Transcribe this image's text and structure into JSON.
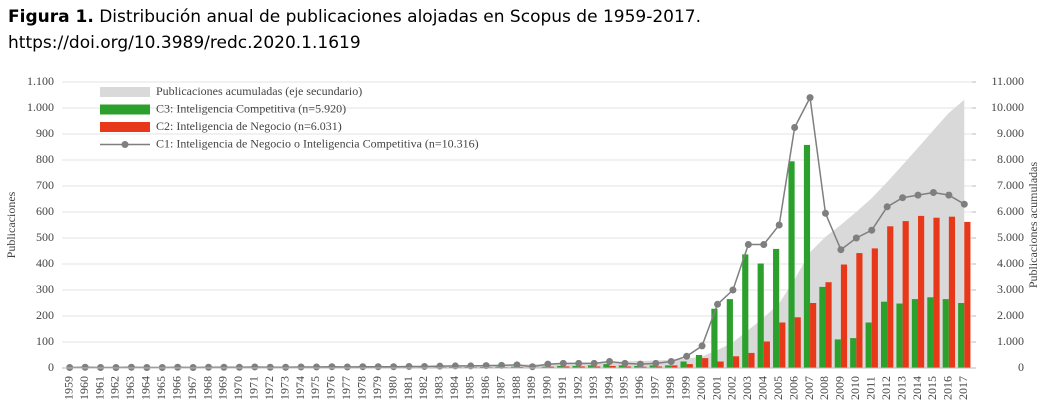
{
  "chart_data": {
    "type": "combo",
    "title_label": "Figura 1.",
    "title": "Distribución anual de publicaciones alojadas en Scopus de 1959-2017.",
    "subtitle": "https://doi.org/10.3989/redc.2020.1.1619",
    "y_label": "Publicaciones",
    "y2_label": "Publicaciones acumuladas",
    "categories": [
      "1959",
      "1960",
      "1961",
      "1962",
      "1963",
      "1964",
      "1965",
      "1966",
      "1967",
      "1968",
      "1969",
      "1970",
      "1971",
      "1972",
      "1973",
      "1974",
      "1975",
      "1976",
      "1977",
      "1978",
      "1979",
      "1980",
      "1981",
      "1982",
      "1983",
      "1984",
      "1985",
      "1986",
      "1987",
      "1988",
      "1989",
      "1990",
      "1991",
      "1992",
      "1993",
      "1994",
      "1995",
      "1996",
      "1997",
      "1998",
      "1999",
      "2000",
      "2001",
      "2002",
      "2003",
      "2004",
      "2005",
      "2006",
      "2007",
      "2008",
      "2009",
      "2010",
      "2011",
      "2012",
      "2013",
      "2014",
      "2015",
      "2016",
      "2017"
    ],
    "series": [
      {
        "name": "Publicaciones acumuladas (eje secundario)",
        "type": "area",
        "axis": "y2",
        "color": "#d9d9d9",
        "values": [
          2,
          5,
          7,
          9,
          12,
          14,
          16,
          19,
          21,
          24,
          27,
          30,
          34,
          37,
          40,
          44,
          48,
          53,
          57,
          62,
          67,
          72,
          78,
          84,
          91,
          99,
          107,
          116,
          126,
          138,
          143,
          158,
          176,
          194,
          212,
          237,
          255,
          270,
          288,
          313,
          358,
          443,
          688,
          988,
          1463,
          1938,
          2488,
          3413,
          4453,
          5048,
          5503,
          6003,
          6533,
          7153,
          7808,
          8473,
          9148,
          9813,
          10316
        ]
      },
      {
        "name": "C3: Inteligencia Competitiva (n=5.920)",
        "type": "bar",
        "color": "#2ca02c",
        "values": [
          1,
          1,
          1,
          1,
          1,
          1,
          1,
          1,
          1,
          1,
          1,
          1,
          2,
          1,
          1,
          2,
          2,
          2,
          2,
          2,
          2,
          2,
          3,
          3,
          3,
          4,
          4,
          4,
          5,
          5,
          2,
          5,
          8,
          8,
          10,
          15,
          10,
          8,
          10,
          10,
          25,
          50,
          228,
          265,
          437,
          402,
          458,
          795,
          858,
          312,
          110,
          115,
          175,
          255,
          248,
          265,
          272,
          265,
          250
        ]
      },
      {
        "name": "C2: Inteligencia de Negocio (n=6.031)",
        "type": "bar",
        "color": "#e8381a",
        "values": [
          1,
          1,
          1,
          1,
          1,
          1,
          1,
          1,
          1,
          1,
          1,
          1,
          1,
          1,
          1,
          1,
          2,
          2,
          2,
          2,
          2,
          2,
          2,
          2,
          3,
          3,
          3,
          3,
          3,
          4,
          2,
          5,
          6,
          6,
          6,
          8,
          6,
          5,
          6,
          10,
          15,
          38,
          25,
          45,
          58,
          102,
          175,
          195,
          250,
          330,
          398,
          442,
          460,
          545,
          565,
          585,
          578,
          582,
          562
        ]
      },
      {
        "name": "C1: Inteligencia de Negocio o Inteligencia Competitiva (n=10.316)",
        "type": "line",
        "color": "#7f7f7f",
        "values": [
          2,
          3,
          2,
          2,
          3,
          2,
          2,
          3,
          2,
          3,
          3,
          3,
          4,
          3,
          3,
          4,
          4,
          5,
          4,
          5,
          5,
          5,
          6,
          6,
          7,
          8,
          8,
          9,
          10,
          12,
          5,
          15,
          18,
          18,
          18,
          25,
          18,
          15,
          18,
          25,
          45,
          85,
          245,
          300,
          475,
          475,
          550,
          925,
          1040,
          595,
          455,
          500,
          530,
          620,
          655,
          665,
          675,
          665,
          630
        ]
      }
    ],
    "ylim": [
      0,
      1100
    ],
    "yticks": [
      0,
      100,
      200,
      300,
      400,
      500,
      600,
      700,
      800,
      900,
      {
        "value": 1000,
        "label": "1.000"
      },
      {
        "value": 1100,
        "label": "1.100"
      }
    ],
    "y2lim": [
      0,
      11000
    ],
    "y2ticks": [
      0,
      {
        "value": 1000,
        "label": "1.000"
      },
      {
        "value": 2000,
        "label": "2.000"
      },
      {
        "value": 3000,
        "label": "3.000"
      },
      {
        "value": 4000,
        "label": "4.000"
      },
      {
        "value": 5000,
        "label": "5.000"
      },
      {
        "value": 6000,
        "label": "6.000"
      },
      {
        "value": 7000,
        "label": "7.000"
      },
      {
        "value": 8000,
        "label": "8.000"
      },
      {
        "value": 9000,
        "label": "9.000"
      },
      {
        "value": 10000,
        "label": "10.000"
      },
      {
        "value": 11000,
        "label": "11.000"
      }
    ],
    "grid": true,
    "legend": "top-left"
  }
}
